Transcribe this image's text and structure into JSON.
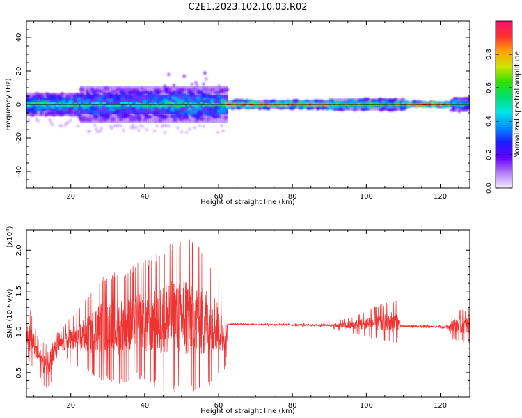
{
  "title": "C2E1.2023.102.10.03.R02",
  "colors": {
    "snr_line": "#ee3333",
    "zero_line": "#000000"
  },
  "chart_data": [
    {
      "type": "heatmap",
      "xlabel": "Height of straight line (km)",
      "ylabel": "Frequency (Hz)",
      "xlim": [
        8,
        128
      ],
      "ylim": [
        -50,
        50
      ],
      "x_ticks": [
        20,
        40,
        60,
        80,
        100,
        120
      ],
      "y_ticks": [
        -40,
        -20,
        0,
        20,
        40
      ],
      "colorbar": {
        "label": "Normalized spectral amplitude",
        "range": [
          0.0,
          1.0
        ],
        "ticks": [
          "0.0",
          "0.2",
          "0.4",
          "0.6",
          "0.8"
        ],
        "colormap": [
          "#f4eefe",
          "#b47cf8",
          "#6600ff",
          "#1c1cff",
          "#0090ff",
          "#00e6e6",
          "#00e070",
          "#30e000",
          "#d0e600",
          "#ffa000",
          "#ff3030",
          "#f01070"
        ]
      },
      "zero_line_y": 0,
      "regions": [
        {
          "x": [
            8,
            22
          ],
          "spread_hz": 8,
          "peak": 0.55
        },
        {
          "x": [
            22,
            45
          ],
          "spread_hz": 12,
          "peak": 0.5
        },
        {
          "x": [
            45,
            62
          ],
          "spread_hz": 12,
          "peak": 0.55,
          "outliers_up_to_hz": 20
        },
        {
          "x": [
            62,
            90
          ],
          "spread_hz": 3,
          "peak": 0.85
        },
        {
          "x": [
            90,
            110
          ],
          "spread_hz": 4,
          "peak": 0.7
        },
        {
          "x": [
            110,
            123
          ],
          "spread_hz": 2,
          "peak": 0.9
        },
        {
          "x": [
            123,
            128
          ],
          "spread_hz": 5,
          "peak": 0.55
        }
      ]
    },
    {
      "type": "line",
      "xlabel": "Height of straight line (km)",
      "ylabel": "SNR (10 * v/v)",
      "y_exponent": "(x10",
      "y_exponent_power": "4",
      "y_exponent_close": ")",
      "xlim": [
        8,
        128
      ],
      "ylim": [
        0.2,
        2.25
      ],
      "x_ticks": [
        20,
        40,
        60,
        80,
        100,
        120
      ],
      "y_ticks": [
        "0.5",
        "1.0",
        "1.5",
        "2.0"
      ],
      "series": [
        {
          "color": "#ee3333",
          "envelope": [
            {
              "x": 8,
              "lo": 0.75,
              "hi": 1.25
            },
            {
              "x": 9,
              "lo": 0.55,
              "hi": 1.3
            },
            {
              "x": 11,
              "lo": 0.5,
              "hi": 0.95
            },
            {
              "x": 13,
              "lo": 0.3,
              "hi": 0.85
            },
            {
              "x": 15,
              "lo": 0.35,
              "hi": 1.05
            },
            {
              "x": 17,
              "lo": 0.7,
              "hi": 1.0
            },
            {
              "x": 20,
              "lo": 0.6,
              "hi": 1.2
            },
            {
              "x": 24,
              "lo": 0.5,
              "hi": 1.4
            },
            {
              "x": 28,
              "lo": 0.4,
              "hi": 1.7
            },
            {
              "x": 33,
              "lo": 0.35,
              "hi": 1.75
            },
            {
              "x": 38,
              "lo": 0.4,
              "hi": 1.85
            },
            {
              "x": 42,
              "lo": 0.3,
              "hi": 1.95
            },
            {
              "x": 47,
              "lo": 0.25,
              "hi": 2.1
            },
            {
              "x": 51,
              "lo": 0.2,
              "hi": 2.2
            },
            {
              "x": 55,
              "lo": 0.25,
              "hi": 2.05
            },
            {
              "x": 59,
              "lo": 0.4,
              "hi": 1.8
            },
            {
              "x": 62,
              "lo": 0.55,
              "hi": 1.3
            },
            {
              "x": 62.5,
              "lo": 1.08,
              "hi": 1.11
            },
            {
              "x": 90,
              "lo": 1.06,
              "hi": 1.1
            },
            {
              "x": 93,
              "lo": 1.0,
              "hi": 1.15
            },
            {
              "x": 97,
              "lo": 0.97,
              "hi": 1.2
            },
            {
              "x": 101,
              "lo": 0.92,
              "hi": 1.3
            },
            {
              "x": 105,
              "lo": 0.88,
              "hi": 1.35
            },
            {
              "x": 108,
              "lo": 0.85,
              "hi": 1.4
            },
            {
              "x": 109.5,
              "lo": 1.05,
              "hi": 1.09
            },
            {
              "x": 122,
              "lo": 1.04,
              "hi": 1.08
            },
            {
              "x": 123.5,
              "lo": 0.9,
              "hi": 1.25
            },
            {
              "x": 128,
              "lo": 0.85,
              "hi": 1.3
            }
          ]
        }
      ]
    }
  ]
}
